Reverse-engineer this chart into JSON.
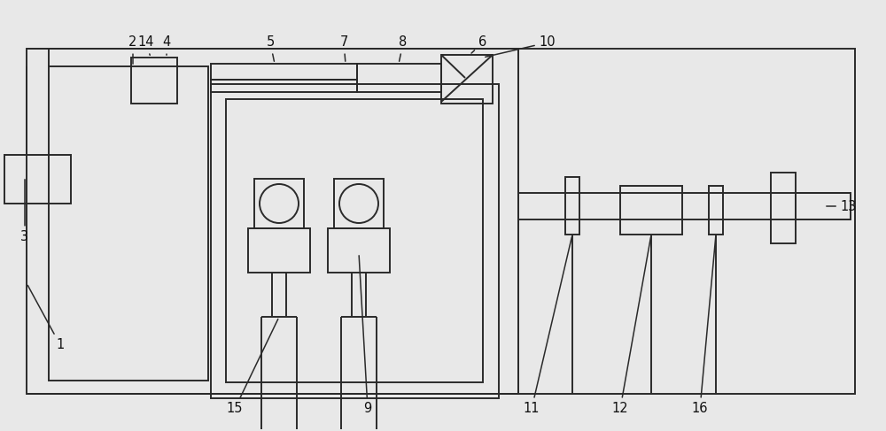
{
  "bg_color": "#e8e8e8",
  "line_color": "#2a2a2a",
  "lw": 1.4,
  "fig_w": 10.0,
  "fig_h": 4.87
}
